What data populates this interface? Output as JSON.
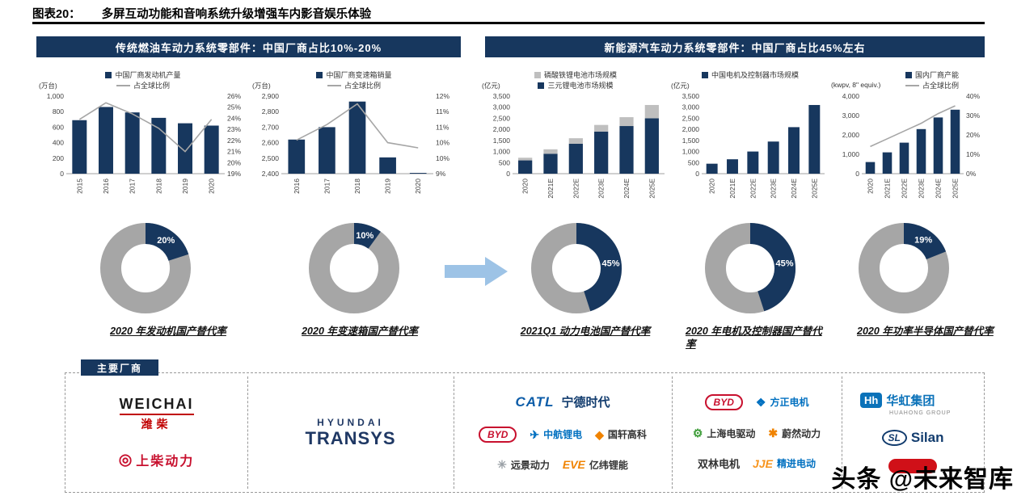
{
  "page": {
    "title_tag": "图表20：",
    "title": "多屏互动功能和音响系统升级增强车内影音娱乐体验",
    "watermark": "头条 @未来智库"
  },
  "banners": {
    "fuel": "传统燃油车动力系统零部件：中国厂商占比10%-20%",
    "nev": "新能源汽车动力系统零部件：中国厂商占比45%左右"
  },
  "colors": {
    "navy": "#17375E",
    "gray_series": "#BFBFBF",
    "line": "#A6A6A6",
    "donut_gray": "#A6A6A6",
    "arrow": "#9DC3E6"
  },
  "chart_data": [
    {
      "type": "bar+line",
      "unit": "(万台)",
      "categories": [
        "2015",
        "2016",
        "2017",
        "2018",
        "2019",
        "2020"
      ],
      "series": [
        {
          "name": "中国厂商发动机产量",
          "type": "bar",
          "color": "navy",
          "values": [
            690,
            860,
            790,
            720,
            650,
            620
          ]
        },
        {
          "name": "占全球比例",
          "type": "line",
          "values": [
            23.9,
            25.4,
            24.4,
            23.1,
            21.0,
            23.9
          ]
        }
      ],
      "left_axis": {
        "min": 0,
        "max": 1000,
        "step": 200
      },
      "right_axis": {
        "min": 19,
        "max": 26,
        "step": 1,
        "suffix": "%"
      }
    },
    {
      "type": "bar+line",
      "unit": "(万台)",
      "categories": [
        "2016",
        "2017",
        "2018",
        "2019",
        "2020"
      ],
      "series": [
        {
          "name": "中国厂商变速箱销量",
          "type": "bar",
          "color": "navy",
          "values": [
            2620,
            2700,
            2865,
            2505,
            2405
          ]
        },
        {
          "name": "占全球比例",
          "type": "line",
          "values": [
            10.3,
            10.9,
            11.7,
            10.2,
            10.0
          ]
        }
      ],
      "left_axis": {
        "min": 2400,
        "max": 2900,
        "step": 100
      },
      "right_axis": {
        "min": 9,
        "max": 12,
        "step": 0.6,
        "round": true,
        "suffix": "%"
      }
    },
    {
      "type": "stacked-bar",
      "unit": "(亿元)",
      "categories": [
        "2020",
        "2021E",
        "2022E",
        "2023E",
        "2024E",
        "2025E"
      ],
      "series": [
        {
          "name": "磷酸铁锂电池市场规模",
          "type": "bar",
          "color": "gray",
          "values": [
            120,
            200,
            250,
            300,
            400,
            600
          ]
        },
        {
          "name": "三元锂电池市场规模",
          "type": "bar",
          "color": "navy",
          "values": [
            600,
            900,
            1350,
            1900,
            2150,
            2500
          ]
        }
      ],
      "left_axis": {
        "min": 0,
        "max": 3500,
        "step": 500
      }
    },
    {
      "type": "bar",
      "unit": "(亿元)",
      "categories": [
        "2020",
        "2021E",
        "2022E",
        "2023E",
        "2024E",
        "2025E"
      ],
      "series": [
        {
          "name": "中国电机及控制器市场规模",
          "type": "bar",
          "color": "navy",
          "values": [
            450,
            650,
            1000,
            1450,
            2100,
            3100
          ]
        }
      ],
      "left_axis": {
        "min": 0,
        "max": 3500,
        "step": 500
      }
    },
    {
      "type": "bar+line",
      "unit": "(kwpv, 8\" equiv.)",
      "categories": [
        "2020",
        "2021E",
        "2022E",
        "2023E",
        "2024E",
        "2025E"
      ],
      "series": [
        {
          "name": "国内厂商产能",
          "type": "bar",
          "color": "navy",
          "values": [
            600,
            1100,
            1600,
            2300,
            2900,
            3300
          ]
        },
        {
          "name": "占全球比例",
          "type": "line",
          "values": [
            14,
            18,
            22,
            26,
            31,
            35
          ]
        }
      ],
      "left_axis": {
        "min": 0,
        "max": 4000,
        "step": 1000
      },
      "right_axis": {
        "min": 0,
        "max": 40,
        "step": 10,
        "suffix": "%"
      }
    }
  ],
  "donuts": [
    {
      "pct": 20,
      "label": "20%",
      "caption": "2020 年发动机国产替代率"
    },
    {
      "pct": 10,
      "label": "10%",
      "caption": "2020 年变速箱国产替代率"
    },
    {
      "pct": 45,
      "label": "45%",
      "caption": "2021Q1 动力电池国产替代率"
    },
    {
      "pct": 45,
      "label": "45%",
      "caption": "2020 年电机及控制器国产替代率"
    },
    {
      "pct": 19,
      "label": "19%",
      "caption": "2020 年功率半导体国产替代率"
    }
  ],
  "vendors": {
    "tag": "主要厂商",
    "columns": [
      {
        "rows": [
          [
            {
              "id": "weichai",
              "lines": [
                "WEICHAI",
                "潍柴"
              ]
            }
          ],
          [
            {
              "id": "shangchai",
              "icon": {
                "name": "red-roundel",
                "glyph": "◎",
                "color": "#C8102E"
              },
              "lines": [
                "上柴动力"
              ]
            }
          ]
        ]
      },
      {
        "rows": [
          [
            {
              "id": "hyundai-transys",
              "lines": [
                "HYUNDAI",
                "TRANSYS"
              ]
            }
          ]
        ]
      },
      {
        "rows": [
          [
            {
              "id": "catl",
              "lines": [
                "CATL",
                "宁德时代"
              ]
            }
          ],
          [
            {
              "id": "byd",
              "lines": [
                "BYD"
              ]
            },
            {
              "id": "calb",
              "icon": {
                "name": "plane",
                "glyph": "✈",
                "color": "#0070C0"
              },
              "lines": [
                "中航锂电"
              ]
            },
            {
              "id": "gotion",
              "icon": {
                "name": "diamond",
                "glyph": "◆",
                "color": "#F08300"
              },
              "lines": [
                "国轩高科"
              ]
            }
          ],
          [
            {
              "id": "envision",
              "icon": {
                "name": "spark",
                "glyph": "✳",
                "color": "#9aa0a6"
              },
              "lines": [
                "远景动力"
              ]
            },
            {
              "id": "eve",
              "lines": [
                "EVE",
                "亿纬锂能"
              ]
            }
          ]
        ]
      },
      {
        "rows": [
          [
            {
              "id": "byd",
              "lines": [
                "BYD"
              ]
            },
            {
              "id": "founder-motor",
              "icon": {
                "name": "swirl",
                "glyph": "❖",
                "color": "#0070C0"
              },
              "lines": [
                "方正电机"
              ]
            }
          ],
          [
            {
              "id": "shanghai-edrive",
              "icon": {
                "name": "gear",
                "glyph": "⚙",
                "color": "#3A9B35"
              },
              "lines": [
                "上海电驱动"
              ]
            },
            {
              "id": "weiran",
              "icon": {
                "name": "flame",
                "glyph": "✱",
                "color": "#F08300"
              },
              "lines": [
                "蔚然动力"
              ]
            }
          ],
          [
            {
              "id": "shuanglin",
              "lines": [
                "双林电机"
              ]
            },
            {
              "id": "jje",
              "lines": [
                "JJE",
                "精进电动"
              ]
            }
          ]
        ]
      },
      {
        "rows": [
          [
            {
              "id": "huahong",
              "lines": [
                "Hh",
                "华虹集团",
                "HUAHONG GROUP"
              ]
            }
          ],
          [
            {
              "id": "silan",
              "lines": [
                "SL",
                "Silan"
              ]
            }
          ],
          [
            {
              "id": "red-logo",
              "lines": []
            }
          ]
        ]
      }
    ]
  }
}
